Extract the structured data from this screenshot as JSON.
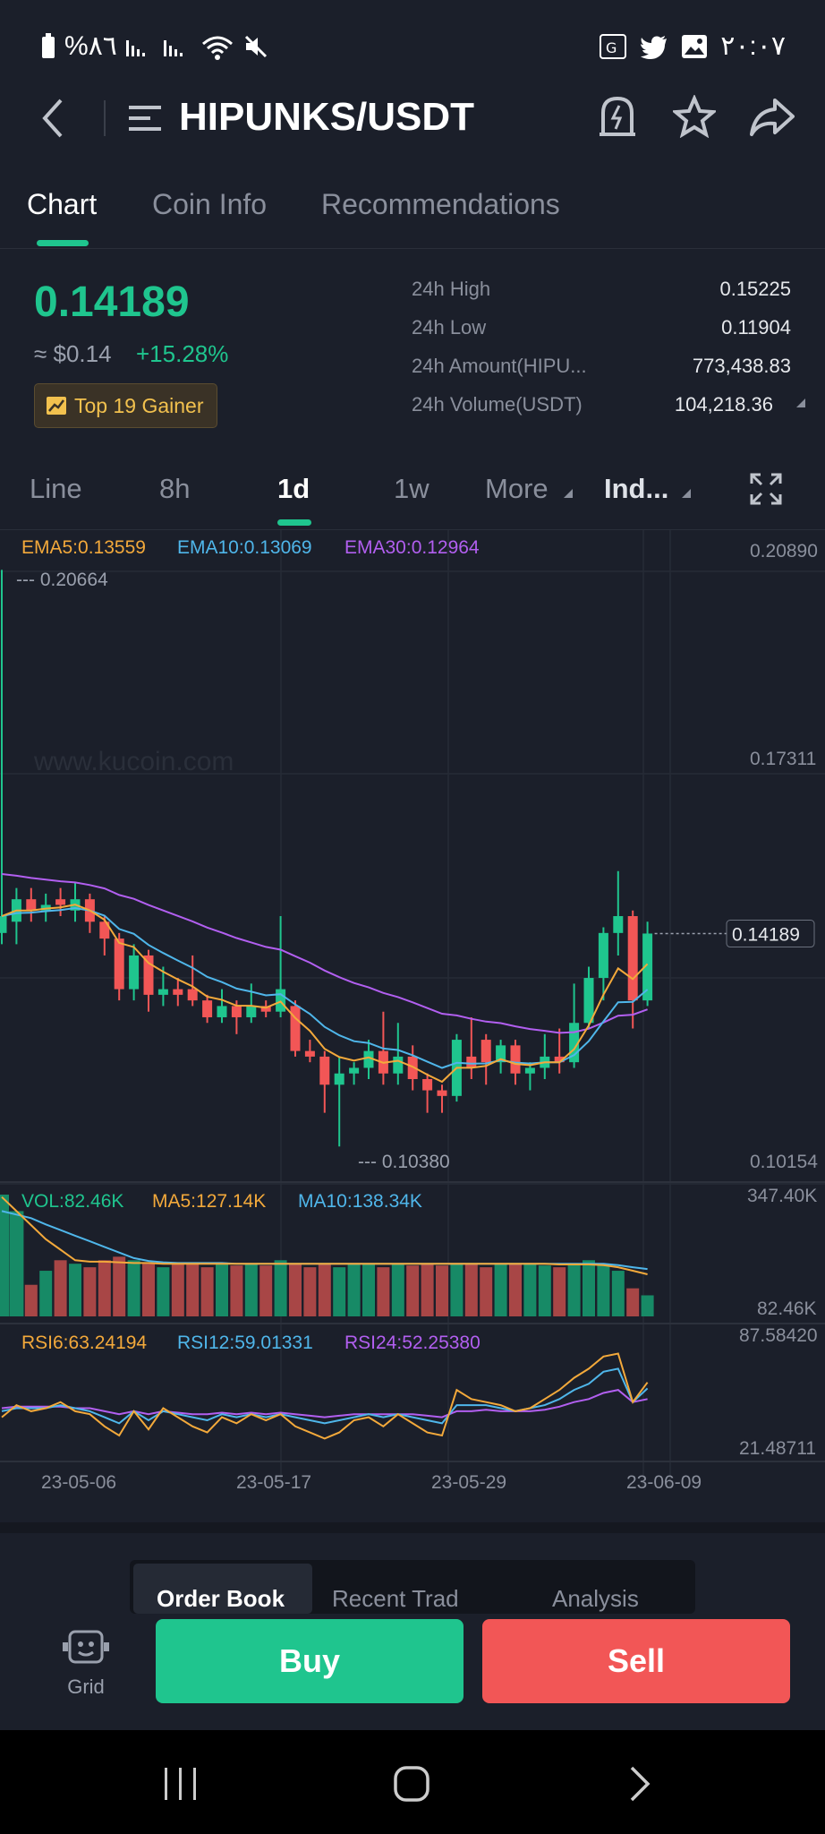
{
  "status_bar": {
    "battery": "%٨٦",
    "time": "٢٠:٠٧"
  },
  "header": {
    "pair": "HIPUNKS/USDT"
  },
  "tabs": [
    "Chart",
    "Coin Info",
    "Recommendations"
  ],
  "ticker": {
    "price": "0.14189",
    "usd": "≈ $0.14",
    "change": "+15.28%",
    "badge": "Top 19 Gainer",
    "stats": [
      {
        "label": "24h High",
        "value": "0.15225"
      },
      {
        "label": "24h Low",
        "value": "0.11904"
      },
      {
        "label": "24h Amount(HIPU...",
        "value": "773,438.83"
      },
      {
        "label": "24h Volume(USDT)",
        "value": "104,218.36"
      }
    ]
  },
  "timeframes": {
    "line": "Line",
    "h8": "8h",
    "d1": "1d",
    "w1": "1w",
    "more": "More",
    "ind": "Ind..."
  },
  "chart": {
    "ema": {
      "ema5": "EMA5:0.13559",
      "ema10": "EMA10:0.13069",
      "ema30": "EMA30:0.12964"
    },
    "price_axis": [
      "0.20890",
      "0.17311",
      "0.10154"
    ],
    "current_price_tag": "0.14189",
    "high_mark": "--- 0.20664",
    "low_mark": "--- 0.10380",
    "vol": {
      "vol": "VOL:82.46K",
      "ma5": "MA5:127.14K",
      "ma10": "MA10:138.34K",
      "max": "347.40K",
      "cur": "82.46K"
    },
    "rsi": {
      "r6": "RSI6:63.24194",
      "r12": "RSI12:59.01331",
      "r24": "RSI24:52.25380",
      "max": "87.58420",
      "min": "21.48711"
    },
    "dates": [
      "23-05-06",
      "23-05-17",
      "23-05-29",
      "23-06-09"
    ],
    "watermark": "www.kucoin.com",
    "colors": {
      "up": "#1fc58e",
      "down": "#f25656",
      "ema5": "#f3a93b",
      "ema10": "#4fb6ea",
      "ema30": "#b25ff0"
    }
  },
  "bottom_tabs": [
    "Order Book",
    "Recent Trad",
    "Analysis"
  ],
  "actions": {
    "grid": "Grid",
    "buy": "Buy",
    "sell": "Sell"
  }
}
